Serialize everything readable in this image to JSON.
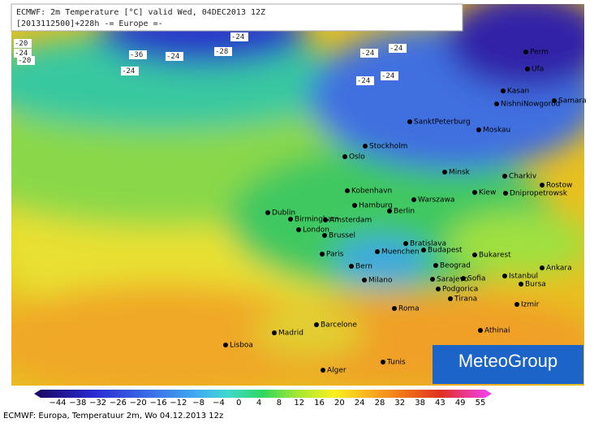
{
  "header": {
    "line1": "ECMWF: 2m Temperature [°C] valid Wed, 04DEC2013 12Z",
    "line2": "[2013112500]+228h  -= Europe =-"
  },
  "cities": [
    "Oslo",
    "Stockholm",
    "SanktPeterburg",
    "Moskau",
    "Perm",
    "Ufa",
    "Kasan",
    "NishniNowgorod",
    "Samara",
    "Minsk",
    "Charkiv",
    "Rostow",
    "Dnipropetrowsk",
    "Kiew",
    "Warszawa",
    "Kobenhavn",
    "Hamburg",
    "Berlin",
    "Dublin",
    "Birmingham",
    "Amsterdam",
    "London",
    "Brussel",
    "Bratislava",
    "Budapest",
    "Muenchen",
    "Paris",
    "Bern",
    "Bukarest",
    "Beograd",
    "Sarajevo",
    "Sofia",
    "Podgorica",
    "Tirana",
    "Istanbul",
    "Bursa",
    "Ankara",
    "Izmir",
    "Athinai",
    "Milano",
    "Roma",
    "Barcelone",
    "Madrid",
    "Lisboa",
    "Tunis",
    "Alger"
  ],
  "contour_labels": [
    "-20",
    "-24",
    "-20",
    "-36",
    "-24",
    "-28",
    "-24",
    "-24",
    "-24",
    "-24",
    "-24",
    "-24"
  ],
  "colorbar": {
    "ticks": [
      "−44",
      "−38",
      "−32",
      "−26",
      "−20",
      "−16",
      "−12",
      "−8",
      "−4",
      "0",
      "4",
      "8",
      "12",
      "16",
      "20",
      "24",
      "28",
      "32",
      "38",
      "43",
      "49",
      "55"
    ]
  },
  "logo": "MeteoGroup",
  "caption": "ECMWF: Europa, Temperatuur 2m, Wo 04.12.2013 12z"
}
